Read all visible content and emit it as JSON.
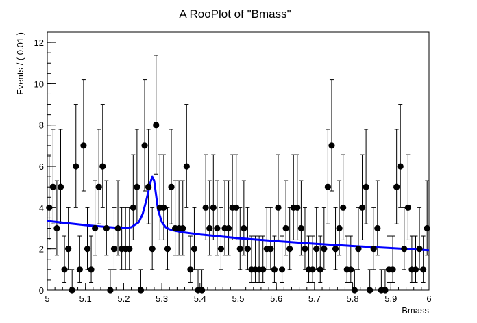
{
  "chart_data": {
    "type": "scatter",
    "title": "A RooPlot of \"Bmass\"",
    "xlabel": "Bmass",
    "ylabel": "Events / ( 0.01 )",
    "xlim": [
      5.0,
      6.0
    ],
    "ylim": [
      0,
      12.5
    ],
    "xticks": [
      5.0,
      5.1,
      5.2,
      5.3,
      5.4,
      5.5,
      5.6,
      5.7,
      5.8,
      5.9,
      6.0
    ],
    "xtick_labels": [
      "5",
      "5.1",
      "5.2",
      "5.3",
      "5.4",
      "5.5",
      "5.6",
      "5.7",
      "5.8",
      "5.9",
      "6"
    ],
    "yticks": [
      0,
      2,
      4,
      6,
      8,
      10,
      12
    ],
    "ytick_labels": [
      "0",
      "2",
      "4",
      "6",
      "8",
      "10",
      "12"
    ],
    "grid": false,
    "series": [
      {
        "kind": "data-points-with-errors",
        "color": "#000000",
        "x": [
          5.005,
          5.015,
          5.025,
          5.035,
          5.045,
          5.055,
          5.065,
          5.075,
          5.085,
          5.095,
          5.105,
          5.115,
          5.125,
          5.135,
          5.145,
          5.155,
          5.165,
          5.175,
          5.185,
          5.195,
          5.205,
          5.215,
          5.225,
          5.235,
          5.245,
          5.255,
          5.265,
          5.275,
          5.285,
          5.295,
          5.305,
          5.315,
          5.325,
          5.335,
          5.345,
          5.355,
          5.365,
          5.375,
          5.385,
          5.395,
          5.405,
          5.415,
          5.425,
          5.435,
          5.445,
          5.455,
          5.465,
          5.475,
          5.485,
          5.495,
          5.505,
          5.515,
          5.525,
          5.535,
          5.545,
          5.555,
          5.565,
          5.575,
          5.585,
          5.595,
          5.605,
          5.615,
          5.625,
          5.635,
          5.645,
          5.655,
          5.665,
          5.675,
          5.685,
          5.695,
          5.705,
          5.715,
          5.725,
          5.735,
          5.745,
          5.755,
          5.765,
          5.775,
          5.785,
          5.795,
          5.805,
          5.815,
          5.825,
          5.835,
          5.845,
          5.855,
          5.865,
          5.875,
          5.885,
          5.895,
          5.905,
          5.915,
          5.925,
          5.935,
          5.945,
          5.955,
          5.965,
          5.975,
          5.985,
          5.995
        ],
        "values": [
          4,
          5,
          3,
          5,
          1,
          2,
          0,
          6,
          1,
          7,
          2,
          1,
          3,
          5,
          6,
          3,
          0,
          2,
          3,
          2,
          2,
          2,
          4,
          5,
          0,
          7,
          5,
          2,
          8,
          4,
          4,
          2,
          5,
          3,
          3,
          3,
          6,
          1,
          2,
          0,
          0,
          4,
          3,
          4,
          3,
          2,
          3,
          3,
          4,
          4,
          2,
          3,
          2,
          1,
          1,
          1,
          1,
          2,
          2,
          1,
          4,
          1,
          3,
          2,
          4,
          4,
          3,
          2,
          1,
          1,
          2,
          1,
          2,
          5,
          7,
          2,
          3,
          4,
          1,
          1,
          0,
          2,
          4,
          5,
          0,
          2,
          3,
          0,
          0,
          1,
          1,
          5,
          6,
          2,
          4,
          1,
          1,
          2,
          1,
          3
        ]
      },
      {
        "kind": "fit-curve",
        "color": "#0000ff",
        "x": [
          5.0,
          5.05,
          5.1,
          5.15,
          5.2,
          5.22,
          5.24,
          5.25,
          5.26,
          5.27,
          5.275,
          5.28,
          5.285,
          5.29,
          5.3,
          5.31,
          5.32,
          5.33,
          5.35,
          5.4,
          5.5,
          5.6,
          5.7,
          5.8,
          5.9,
          6.0
        ],
        "values": [
          3.35,
          3.25,
          3.15,
          3.07,
          3.0,
          3.05,
          3.3,
          3.7,
          4.4,
          5.2,
          5.5,
          5.3,
          4.6,
          3.9,
          3.3,
          3.05,
          2.95,
          2.9,
          2.82,
          2.7,
          2.52,
          2.38,
          2.25,
          2.14,
          2.04,
          1.93
        ]
      }
    ]
  }
}
